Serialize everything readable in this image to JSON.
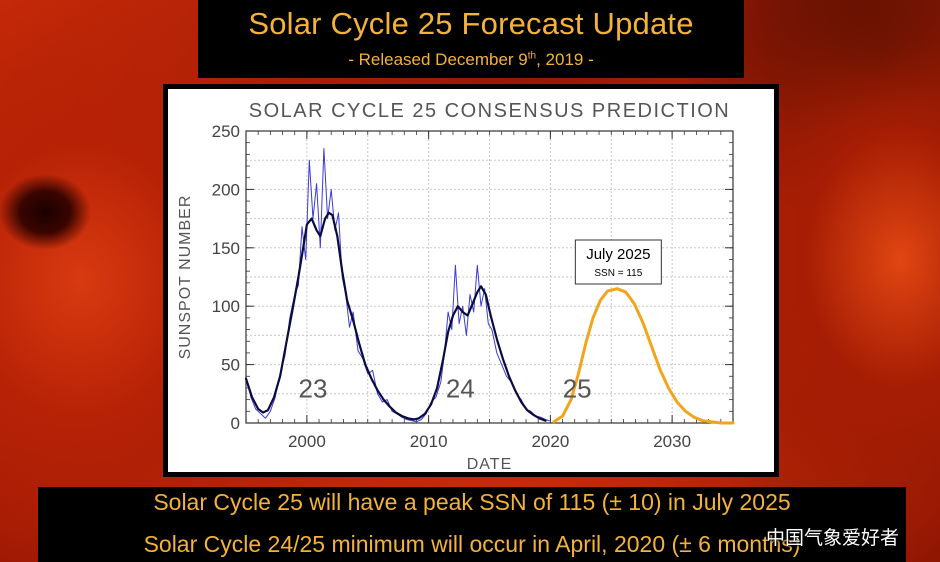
{
  "header": {
    "title": "Solar Cycle 25 Forecast Update",
    "subtitle_prefix": "- Released December 9",
    "subtitle_sup": "th",
    "subtitle_suffix": ", 2019 -"
  },
  "chart_data": {
    "type": "line",
    "title": "SOLAR CYCLE 25 CONSENSUS PREDICTION",
    "xlabel": "DATE",
    "ylabel": "SUNSPOT NUMBER",
    "xlim": [
      1995,
      2035
    ],
    "ylim": [
      0,
      250
    ],
    "xticks": [
      2000,
      2010,
      2020,
      2030
    ],
    "yticks": [
      0,
      50,
      100,
      150,
      200,
      250
    ],
    "grid": true,
    "cycle_labels": [
      {
        "text": "23",
        "x": 2000.5,
        "y": 22
      },
      {
        "text": "24",
        "x": 2012.6,
        "y": 22
      },
      {
        "text": "25",
        "x": 2022.2,
        "y": 22
      }
    ],
    "annotation": {
      "title": "July 2025",
      "text": "SSN = 115",
      "x": 2025.5,
      "y": 115
    },
    "series": [
      {
        "color": "#3b3bd6",
        "style": "monthly",
        "points": [
          [
            1995.0,
            38
          ],
          [
            1995.4,
            22
          ],
          [
            1995.8,
            12
          ],
          [
            1996.2,
            8
          ],
          [
            1996.6,
            4
          ],
          [
            1997.0,
            10
          ],
          [
            1997.4,
            22
          ],
          [
            1997.8,
            42
          ],
          [
            1998.2,
            58
          ],
          [
            1998.6,
            90
          ],
          [
            1999.0,
            110
          ],
          [
            1999.3,
            118
          ],
          [
            1999.6,
            168
          ],
          [
            1999.9,
            140
          ],
          [
            2000.2,
            225
          ],
          [
            2000.5,
            175
          ],
          [
            2000.8,
            205
          ],
          [
            2001.1,
            150
          ],
          [
            2001.4,
            235
          ],
          [
            2001.7,
            175
          ],
          [
            2002.0,
            200
          ],
          [
            2002.3,
            165
          ],
          [
            2002.6,
            180
          ],
          [
            2002.9,
            125
          ],
          [
            2003.2,
            110
          ],
          [
            2003.5,
            82
          ],
          [
            2003.8,
            95
          ],
          [
            2004.2,
            62
          ],
          [
            2004.6,
            55
          ],
          [
            2005.0,
            42
          ],
          [
            2005.4,
            45
          ],
          [
            2005.8,
            25
          ],
          [
            2006.2,
            18
          ],
          [
            2006.6,
            20
          ],
          [
            2007.0,
            10
          ],
          [
            2007.4,
            8
          ],
          [
            2007.8,
            5
          ],
          [
            2008.2,
            3
          ],
          [
            2008.6,
            2
          ],
          [
            2009.0,
            1
          ],
          [
            2009.4,
            3
          ],
          [
            2009.8,
            8
          ],
          [
            2010.2,
            18
          ],
          [
            2010.6,
            22
          ],
          [
            2011.0,
            35
          ],
          [
            2011.3,
            60
          ],
          [
            2011.6,
            95
          ],
          [
            2011.9,
            80
          ],
          [
            2012.2,
            135
          ],
          [
            2012.5,
            85
          ],
          [
            2012.8,
            100
          ],
          [
            2013.1,
            75
          ],
          [
            2013.4,
            110
          ],
          [
            2013.7,
            95
          ],
          [
            2014.0,
            135
          ],
          [
            2014.3,
            100
          ],
          [
            2014.6,
            115
          ],
          [
            2014.9,
            85
          ],
          [
            2015.2,
            80
          ],
          [
            2015.6,
            60
          ],
          [
            2016.0,
            50
          ],
          [
            2016.4,
            40
          ],
          [
            2016.8,
            35
          ],
          [
            2017.2,
            25
          ],
          [
            2017.6,
            20
          ],
          [
            2018.0,
            12
          ],
          [
            2018.4,
            10
          ],
          [
            2018.8,
            6
          ],
          [
            2019.2,
            5
          ],
          [
            2019.6,
            3
          ],
          [
            2019.9,
            2
          ]
        ]
      },
      {
        "color": "#0b0b40",
        "style": "smoothed",
        "points": [
          [
            1995.0,
            38
          ],
          [
            1995.5,
            22
          ],
          [
            1996.0,
            12
          ],
          [
            1996.4,
            9
          ],
          [
            1996.8,
            11
          ],
          [
            1997.3,
            22
          ],
          [
            1997.8,
            40
          ],
          [
            1998.3,
            68
          ],
          [
            1998.8,
            96
          ],
          [
            1999.3,
            125
          ],
          [
            1999.7,
            150
          ],
          [
            2000.0,
            170
          ],
          [
            2000.4,
            175
          ],
          [
            2000.8,
            165
          ],
          [
            2001.1,
            160
          ],
          [
            2001.5,
            175
          ],
          [
            2001.8,
            180
          ],
          [
            2002.1,
            178
          ],
          [
            2002.5,
            160
          ],
          [
            2002.9,
            130
          ],
          [
            2003.3,
            105
          ],
          [
            2003.8,
            88
          ],
          [
            2004.3,
            68
          ],
          [
            2004.8,
            50
          ],
          [
            2005.3,
            38
          ],
          [
            2005.8,
            28
          ],
          [
            2006.3,
            20
          ],
          [
            2006.8,
            14
          ],
          [
            2007.3,
            9
          ],
          [
            2007.8,
            6
          ],
          [
            2008.3,
            4
          ],
          [
            2008.8,
            3
          ],
          [
            2009.2,
            4
          ],
          [
            2009.7,
            8
          ],
          [
            2010.2,
            16
          ],
          [
            2010.7,
            30
          ],
          [
            2011.2,
            55
          ],
          [
            2011.6,
            78
          ],
          [
            2012.0,
            92
          ],
          [
            2012.4,
            100
          ],
          [
            2012.8,
            95
          ],
          [
            2013.2,
            92
          ],
          [
            2013.6,
            102
          ],
          [
            2014.0,
            112
          ],
          [
            2014.3,
            117
          ],
          [
            2014.7,
            110
          ],
          [
            2015.1,
            92
          ],
          [
            2015.6,
            72
          ],
          [
            2016.1,
            55
          ],
          [
            2016.6,
            40
          ],
          [
            2017.1,
            28
          ],
          [
            2017.6,
            18
          ],
          [
            2018.1,
            11
          ],
          [
            2018.6,
            7
          ],
          [
            2019.1,
            4
          ],
          [
            2019.6,
            2
          ]
        ]
      },
      {
        "color": "#f2a51c",
        "style": "prediction",
        "points": [
          [
            2020.3,
            1
          ],
          [
            2021.0,
            6
          ],
          [
            2021.7,
            20
          ],
          [
            2022.3,
            42
          ],
          [
            2022.9,
            68
          ],
          [
            2023.5,
            90
          ],
          [
            2024.1,
            105
          ],
          [
            2024.7,
            113
          ],
          [
            2025.5,
            115
          ],
          [
            2026.2,
            112
          ],
          [
            2026.9,
            102
          ],
          [
            2027.6,
            86
          ],
          [
            2028.3,
            66
          ],
          [
            2029.0,
            46
          ],
          [
            2029.7,
            30
          ],
          [
            2030.4,
            18
          ],
          [
            2031.1,
            10
          ],
          [
            2031.8,
            5
          ],
          [
            2032.5,
            2
          ],
          [
            2033.2,
            1
          ],
          [
            2034.0,
            0
          ],
          [
            2035.0,
            0
          ]
        ]
      }
    ]
  },
  "footer": {
    "line1": "Solar Cycle 25 will have a peak SSN of 115 (± 10) in July 2025",
    "line2": "Solar Cycle 24/25 minimum will occur in April, 2020 (± 6 months)"
  },
  "watermark": "中国气象爱好者"
}
